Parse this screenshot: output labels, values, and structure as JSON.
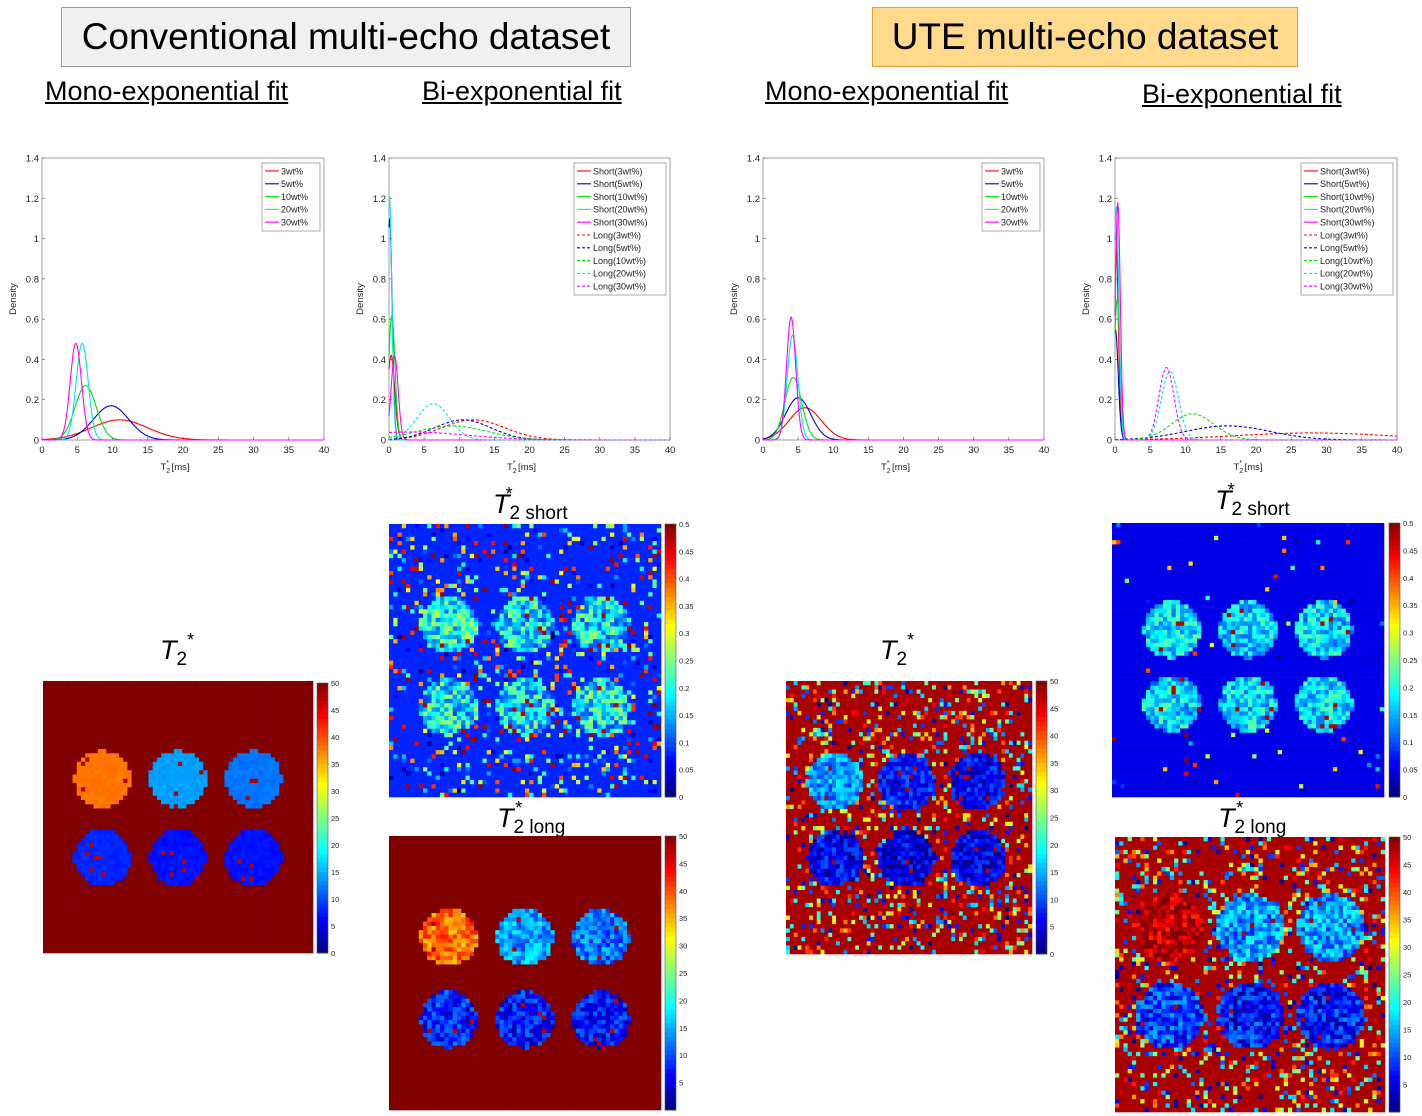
{
  "headers": {
    "conventional": "Conventional multi-echo dataset",
    "ute": "UTE multi-echo dataset",
    "mono": "Mono-exponential fit",
    "bi": "Bi-exponential fit"
  },
  "map_labels": {
    "symbol": "T",
    "sub2": "2",
    "star": "*",
    "short": "short",
    "long": "long"
  },
  "colors": {
    "red": "#ff0000",
    "blue": "#0000cc",
    "green": "#00e000",
    "cyan": "#00e5e5",
    "magenta": "#ff00ff"
  },
  "chart_data": [
    {
      "id": "conv-mono",
      "type": "line",
      "xlabel": "T2* [ms]",
      "ylabel": "Density",
      "xlim": [
        0,
        40
      ],
      "ylim": [
        0,
        1.4
      ],
      "xticks": [
        0,
        5,
        10,
        15,
        20,
        25,
        30,
        35,
        40
      ],
      "yticks": [
        0,
        0.2,
        0.4,
        0.6,
        0.8,
        1,
        1.2,
        1.4
      ],
      "legend_position": "top-right",
      "series": [
        {
          "name": "3wt%",
          "color": "#ff0000",
          "dash": false,
          "peak_x": 11,
          "peak_y": 0.1,
          "width": 4
        },
        {
          "name": "5wt%",
          "color": "#0000cc",
          "dash": false,
          "peak_x": 9.8,
          "peak_y": 0.17,
          "width": 2.5
        },
        {
          "name": "10wt%",
          "color": "#00e000",
          "dash": false,
          "peak_x": 6.2,
          "peak_y": 0.27,
          "width": 1.5
        },
        {
          "name": "20wt%",
          "color": "#00e5e5",
          "dash": false,
          "peak_x": 5.7,
          "peak_y": 0.48,
          "width": 0.85
        },
        {
          "name": "30wt%",
          "color": "#ff00ff",
          "dash": false,
          "peak_x": 4.8,
          "peak_y": 0.48,
          "width": 0.8
        }
      ]
    },
    {
      "id": "conv-bi",
      "type": "line",
      "xlabel": "T2* [ms]",
      "ylabel": "Density",
      "xlim": [
        0,
        40
      ],
      "ylim": [
        0,
        1.4
      ],
      "xticks": [
        0,
        5,
        10,
        15,
        20,
        25,
        30,
        35,
        40
      ],
      "yticks": [
        0,
        0.2,
        0.4,
        0.6,
        0.8,
        1,
        1.2,
        1.4
      ],
      "legend_position": "top-right",
      "series": [
        {
          "name": "Short(3wt%)",
          "color": "#ff0000",
          "dash": false,
          "peak_x": 0.3,
          "peak_y": 0.42,
          "width": 0.5
        },
        {
          "name": "Short(5wt%)",
          "color": "#0000cc",
          "dash": false,
          "peak_x": 0.1,
          "peak_y": 1.1,
          "width": 0.35
        },
        {
          "name": "Short(10wt%)",
          "color": "#00e000",
          "dash": false,
          "peak_x": 0.4,
          "peak_y": 0.62,
          "width": 0.45
        },
        {
          "name": "Short(20wt%)",
          "color": "#00e5e5",
          "dash": false,
          "peak_x": 0.05,
          "peak_y": 1.22,
          "width": 0.35
        },
        {
          "name": "Short(30wt%)",
          "color": "#ff00ff",
          "dash": false,
          "peak_x": 0.8,
          "peak_y": 0.42,
          "width": 0.5
        },
        {
          "name": "Long(3wt%)",
          "color": "#ff0000",
          "dash": true,
          "peak_x": 12,
          "peak_y": 0.1,
          "width": 4.5
        },
        {
          "name": "Long(5wt%)",
          "color": "#0000cc",
          "dash": true,
          "peak_x": 10.5,
          "peak_y": 0.1,
          "width": 4
        },
        {
          "name": "Long(10wt%)",
          "color": "#00e000",
          "dash": true,
          "peak_x": 9,
          "peak_y": 0.07,
          "width": 5
        },
        {
          "name": "Long(20wt%)",
          "color": "#00e5e5",
          "dash": true,
          "peak_x": 6.3,
          "peak_y": 0.18,
          "width": 2.3
        },
        {
          "name": "Long(30wt%)",
          "color": "#ff00ff",
          "dash": true,
          "peak_x": 3,
          "peak_y": 0.04,
          "width": 8
        }
      ]
    },
    {
      "id": "ute-mono",
      "type": "line",
      "xlabel": "T2* [ms]",
      "ylabel": "Density",
      "xlim": [
        0,
        40
      ],
      "ylim": [
        0,
        1.4
      ],
      "xticks": [
        0,
        5,
        10,
        15,
        20,
        25,
        30,
        35,
        40
      ],
      "yticks": [
        0,
        0.2,
        0.4,
        0.6,
        0.8,
        1,
        1.2,
        1.4
      ],
      "legend_position": "top-right",
      "series": [
        {
          "name": "3wt%",
          "color": "#ff0000",
          "dash": false,
          "peak_x": 6,
          "peak_y": 0.16,
          "width": 2.3
        },
        {
          "name": "5wt%",
          "color": "#0000cc",
          "dash": false,
          "peak_x": 5,
          "peak_y": 0.21,
          "width": 1.8
        },
        {
          "name": "10wt%",
          "color": "#00e000",
          "dash": false,
          "peak_x": 4.3,
          "peak_y": 0.31,
          "width": 1.2
        },
        {
          "name": "20wt%",
          "color": "#00e5e5",
          "dash": false,
          "peak_x": 4.2,
          "peak_y": 0.52,
          "width": 0.75
        },
        {
          "name": "30wt%",
          "color": "#ff00ff",
          "dash": false,
          "peak_x": 4,
          "peak_y": 0.61,
          "width": 0.65
        }
      ]
    },
    {
      "id": "ute-bi",
      "type": "line",
      "xlabel": "T2* [ms]",
      "ylabel": "Density",
      "xlim": [
        0,
        40
      ],
      "ylim": [
        0,
        1.4
      ],
      "xticks": [
        0,
        5,
        10,
        15,
        20,
        25,
        30,
        35,
        40
      ],
      "yticks": [
        0,
        0.2,
        0.4,
        0.6,
        0.8,
        1,
        1.2,
        1.4
      ],
      "legend_position": "top-right",
      "series": [
        {
          "name": "Short(3wt%)",
          "color": "#ff0000",
          "dash": false,
          "peak_x": 0.1,
          "peak_y": 1.03,
          "width": 0.35
        },
        {
          "name": "Short(5wt%)",
          "color": "#0000cc",
          "dash": false,
          "peak_x": 0.05,
          "peak_y": 0.55,
          "width": 0.4
        },
        {
          "name": "Short(10wt%)",
          "color": "#00e000",
          "dash": false,
          "peak_x": 0.3,
          "peak_y": 0.7,
          "width": 0.4
        },
        {
          "name": "Short(20wt%)",
          "color": "#00e5e5",
          "dash": false,
          "peak_x": 0.2,
          "peak_y": 1.16,
          "width": 0.35
        },
        {
          "name": "Short(30wt%)",
          "color": "#ff00ff",
          "dash": false,
          "peak_x": 0.4,
          "peak_y": 1.18,
          "width": 0.35
        },
        {
          "name": "Long(3wt%)",
          "color": "#ff0000",
          "dash": true,
          "peak_x": 28,
          "peak_y": 0.035,
          "width": 11
        },
        {
          "name": "Long(5wt%)",
          "color": "#0000cc",
          "dash": true,
          "peak_x": 16,
          "peak_y": 0.07,
          "width": 6
        },
        {
          "name": "Long(10wt%)",
          "color": "#00e000",
          "dash": true,
          "peak_x": 11,
          "peak_y": 0.13,
          "width": 3
        },
        {
          "name": "Long(20wt%)",
          "color": "#00e5e5",
          "dash": true,
          "peak_x": 7.8,
          "peak_y": 0.34,
          "width": 1.2
        },
        {
          "name": "Long(30wt%)",
          "color": "#ff00ff",
          "dash": true,
          "peak_x": 7.3,
          "peak_y": 0.36,
          "width": 1.05
        }
      ]
    },
    {
      "id": "conv-mono-t2star-map",
      "type": "heatmap",
      "title": "T2*",
      "colorbar": {
        "min": 0,
        "max": 50,
        "ticks": [
          0,
          5,
          10,
          15,
          20,
          25,
          30,
          35,
          40,
          45,
          50
        ]
      },
      "background_value": 50,
      "circles": [
        {
          "value": 38
        },
        {
          "value": 14
        },
        {
          "value": 12
        },
        {
          "value": 8
        },
        {
          "value": 7
        },
        {
          "value": 7
        }
      ]
    },
    {
      "id": "conv-bi-t2star-short-map",
      "type": "heatmap",
      "title": "T2* short",
      "colorbar": {
        "min": 0,
        "max": 0.5,
        "ticks": [
          0,
          0.05,
          0.1,
          0.15,
          0.2,
          0.25,
          0.3,
          0.35,
          0.4,
          0.45,
          0.5
        ]
      },
      "background_value": 0.08,
      "circles": [
        {
          "value": 0.2
        },
        {
          "value": 0.18
        },
        {
          "value": 0.18
        },
        {
          "value": 0.18
        },
        {
          "value": 0.18
        },
        {
          "value": 0.18
        }
      ]
    },
    {
      "id": "conv-bi-t2star-long-map",
      "type": "heatmap",
      "title": "T2* long",
      "colorbar": {
        "min": 0,
        "max": 50,
        "ticks": [
          5,
          10,
          15,
          20,
          25,
          30,
          35,
          40,
          45,
          50
        ]
      },
      "background_value": 50,
      "circles": [
        {
          "value": 38
        },
        {
          "value": 14
        },
        {
          "value": 12
        },
        {
          "value": 8
        },
        {
          "value": 7
        },
        {
          "value": 7
        }
      ]
    },
    {
      "id": "ute-mono-t2star-map",
      "type": "heatmap",
      "title": "T2*",
      "colorbar": {
        "min": 0,
        "max": 50,
        "ticks": [
          0,
          5,
          10,
          15,
          20,
          25,
          30,
          35,
          40,
          45,
          50
        ]
      },
      "background_value": 48,
      "circles": [
        {
          "value": 14
        },
        {
          "value": 7
        },
        {
          "value": 6
        },
        {
          "value": 6
        },
        {
          "value": 5
        },
        {
          "value": 5
        }
      ]
    },
    {
      "id": "ute-bi-t2star-short-map",
      "type": "heatmap",
      "title": "T2* short",
      "colorbar": {
        "min": 0,
        "max": 0.5,
        "ticks": [
          0,
          0.05,
          0.1,
          0.15,
          0.2,
          0.25,
          0.3,
          0.35,
          0.4,
          0.45,
          0.5
        ]
      },
      "background_value": 0.05,
      "circles": [
        {
          "value": 0.18
        },
        {
          "value": 0.17
        },
        {
          "value": 0.17
        },
        {
          "value": 0.17
        },
        {
          "value": 0.17
        },
        {
          "value": 0.17
        }
      ]
    },
    {
      "id": "ute-bi-t2star-long-map",
      "type": "heatmap",
      "title": "T2* long",
      "colorbar": {
        "min": 0,
        "max": 50,
        "ticks": [
          5,
          10,
          15,
          20,
          25,
          30,
          35,
          40,
          45,
          50
        ]
      },
      "background_value": 48,
      "circles": [
        {
          "value": 48
        },
        {
          "value": 14
        },
        {
          "value": 14
        },
        {
          "value": 9
        },
        {
          "value": 7
        },
        {
          "value": 7
        }
      ]
    }
  ]
}
